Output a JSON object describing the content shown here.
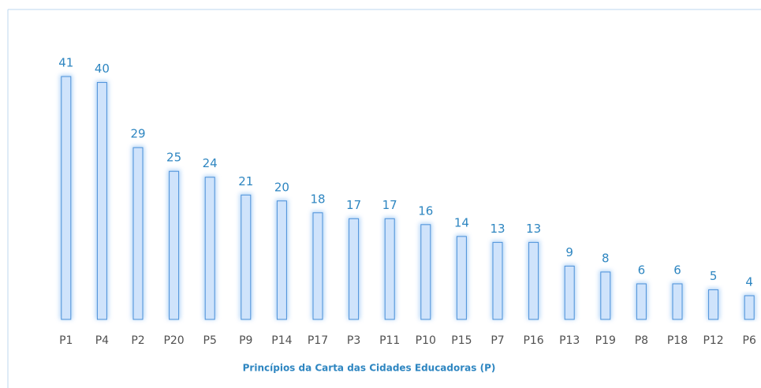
{
  "chart_data": {
    "type": "bar",
    "x_label": "Princípios da Carta das Cidades Educadoras (P)",
    "categories": [
      "P1",
      "P4",
      "P2",
      "P20",
      "P5",
      "P9",
      "P14",
      "P17",
      "P3",
      "P11",
      "P10",
      "P15",
      "P7",
      "P16",
      "P13",
      "P19",
      "P8",
      "P18",
      "P12",
      "P6"
    ],
    "values": [
      41,
      40,
      29,
      25,
      24,
      21,
      20,
      18,
      17,
      17,
      16,
      14,
      13,
      13,
      9,
      8,
      6,
      6,
      5,
      4
    ],
    "color": "#cfe3fb",
    "ylim": [
      0,
      45
    ]
  }
}
